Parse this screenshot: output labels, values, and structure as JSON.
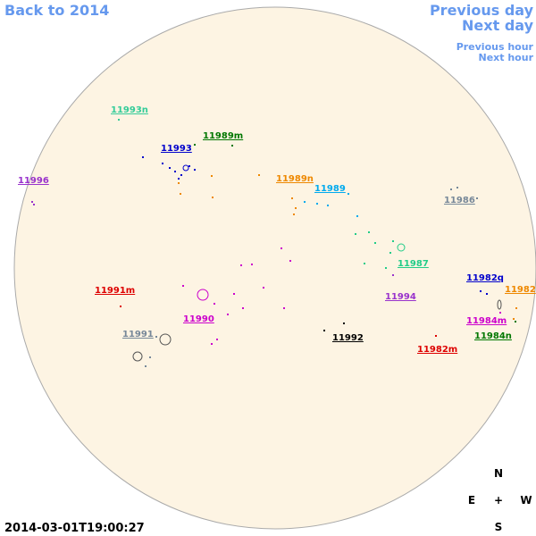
{
  "navigation": {
    "back": "Back to 2014",
    "previous_day": "Previous day",
    "next_day": "Next day",
    "previous_hour": "Previous hour",
    "next_hour": "Next hour"
  },
  "regions": [
    {
      "label": "11993n",
      "color": "#33cc99"
    },
    {
      "label": "11989m",
      "color": "#007700"
    },
    {
      "label": "11993",
      "color": "#0000cc"
    },
    {
      "label": "11996",
      "color": "#9933cc"
    },
    {
      "label": "11989n",
      "color": "#ee8800"
    },
    {
      "label": "11989",
      "color": "#00aaee"
    },
    {
      "label": "11986",
      "color": "#778899"
    },
    {
      "label": "11987",
      "color": "#22cc88"
    },
    {
      "label": "11982q",
      "color": "#0000cc"
    },
    {
      "label": "11982",
      "color": "#ee8800"
    },
    {
      "label": "11991m",
      "color": "#dd0000"
    },
    {
      "label": "11994",
      "color": "#9933cc"
    },
    {
      "label": "11990",
      "color": "#cc00cc"
    },
    {
      "label": "11984m",
      "color": "#cc00cc"
    },
    {
      "label": "11991",
      "color": "#778899"
    },
    {
      "label": "11992",
      "color": "#000000"
    },
    {
      "label": "11984n",
      "color": "#007700"
    },
    {
      "label": "11982m",
      "color": "#dd0000"
    }
  ],
  "timestamp": "2014-03-01T19:00:27",
  "compass": {
    "north": "N",
    "east": "E",
    "center": "+",
    "west": "W",
    "south": "S"
  }
}
